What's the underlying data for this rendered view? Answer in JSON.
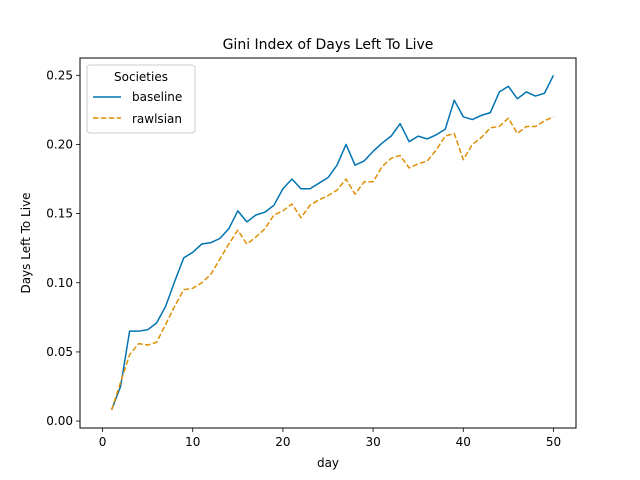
{
  "chart_data": {
    "type": "line",
    "title": "Gini Index of Days Left To Live",
    "xlabel": "day",
    "ylabel": "Days Left To Live",
    "xlim": [
      -2.5,
      52.5
    ],
    "ylim": [
      -0.005,
      0.2625
    ],
    "xticks": [
      0,
      10,
      20,
      30,
      40,
      50
    ],
    "yticks": [
      0.0,
      0.05,
      0.1,
      0.15,
      0.2,
      0.25
    ],
    "xtick_labels": [
      "0",
      "10",
      "20",
      "30",
      "40",
      "50"
    ],
    "ytick_labels": [
      "0.00",
      "0.05",
      "0.10",
      "0.15",
      "0.20",
      "0.25"
    ],
    "grid": false,
    "legend": {
      "title": "Societies",
      "placement": "top-left"
    },
    "x": [
      1,
      2,
      3,
      4,
      5,
      6,
      7,
      8,
      9,
      10,
      11,
      12,
      13,
      14,
      15,
      16,
      17,
      18,
      19,
      20,
      21,
      22,
      23,
      24,
      25,
      26,
      27,
      28,
      29,
      30,
      31,
      32,
      33,
      34,
      35,
      36,
      37,
      38,
      39,
      40,
      41,
      42,
      43,
      44,
      45,
      46,
      47,
      48,
      49,
      50
    ],
    "series": [
      {
        "name": "baseline",
        "color": "#0173b2",
        "style": "solid",
        "values": [
          0.008,
          0.025,
          0.065,
          0.065,
          0.066,
          0.071,
          0.083,
          0.101,
          0.118,
          0.122,
          0.128,
          0.129,
          0.132,
          0.139,
          0.152,
          0.144,
          0.149,
          0.151,
          0.156,
          0.168,
          0.175,
          0.168,
          0.168,
          0.172,
          0.176,
          0.185,
          0.2,
          0.185,
          0.188,
          0.195,
          0.201,
          0.206,
          0.215,
          0.202,
          0.206,
          0.204,
          0.207,
          0.211,
          0.232,
          0.22,
          0.218,
          0.221,
          0.223,
          0.238,
          0.242,
          0.233,
          0.238,
          0.235,
          0.237,
          0.25
        ]
      },
      {
        "name": "rawlsian",
        "color": "#de8f05",
        "style": "dashed",
        "values": [
          0.008,
          0.028,
          0.048,
          0.056,
          0.055,
          0.057,
          0.07,
          0.083,
          0.095,
          0.096,
          0.1,
          0.106,
          0.117,
          0.128,
          0.138,
          0.128,
          0.133,
          0.139,
          0.149,
          0.152,
          0.157,
          0.147,
          0.156,
          0.16,
          0.163,
          0.167,
          0.175,
          0.164,
          0.173,
          0.173,
          0.184,
          0.19,
          0.192,
          0.183,
          0.186,
          0.188,
          0.196,
          0.206,
          0.208,
          0.189,
          0.2,
          0.205,
          0.212,
          0.213,
          0.219,
          0.208,
          0.213,
          0.213,
          0.217,
          0.22
        ]
      }
    ]
  }
}
